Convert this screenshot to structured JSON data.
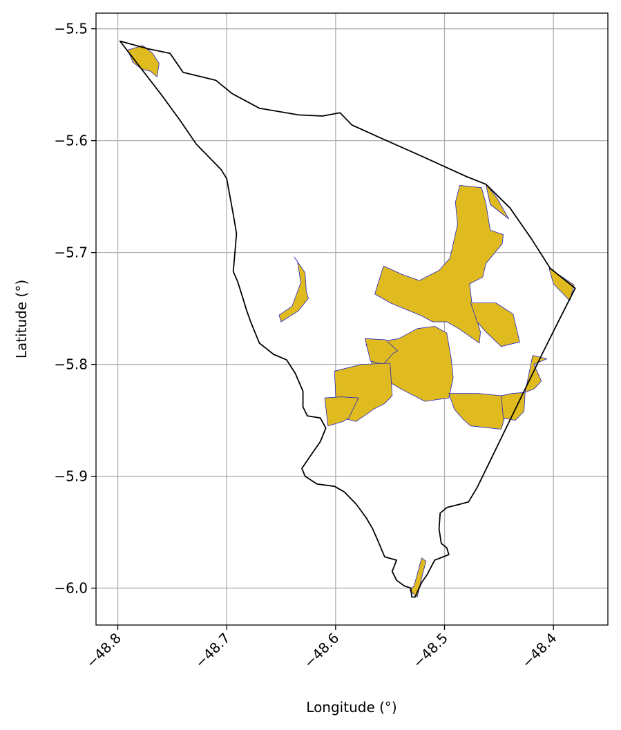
{
  "chart_data": {
    "type": "map",
    "xlabel": "Longitude (°)",
    "ylabel": "Latitude (°)",
    "xlim": [
      -48.82,
      -48.35
    ],
    "ylim": [
      -6.033,
      -5.486
    ],
    "grid": true,
    "xticks": [
      {
        "value": -48.8,
        "label": "−48.8"
      },
      {
        "value": -48.7,
        "label": "−48.7"
      },
      {
        "value": -48.6,
        "label": "−48.6"
      },
      {
        "value": -48.5,
        "label": "−48.5"
      },
      {
        "value": -48.4,
        "label": "−48.4"
      }
    ],
    "yticks": [
      {
        "value": -5.5,
        "label": "−5.5"
      },
      {
        "value": -5.6,
        "label": "−5.6"
      },
      {
        "value": -5.7,
        "label": "−5.7"
      },
      {
        "value": -5.8,
        "label": "−5.8"
      },
      {
        "value": -5.9,
        "label": "−5.9"
      },
      {
        "value": -6.0,
        "label": "−6.0"
      }
    ],
    "colors": {
      "boundary_edge": "#000000",
      "area_fill": "#dfbb1f",
      "area_edge": "#2222cc",
      "grid": "#b0b0b0"
    },
    "boundary": [
      [
        -48.798,
        -5.511
      ],
      [
        -48.772,
        -5.518
      ],
      [
        -48.752,
        -5.522
      ],
      [
        -48.74,
        -5.539
      ],
      [
        -48.71,
        -5.546
      ],
      [
        -48.695,
        -5.558
      ],
      [
        -48.67,
        -5.571
      ],
      [
        -48.634,
        -5.577
      ],
      [
        -48.612,
        -5.578
      ],
      [
        -48.596,
        -5.575
      ],
      [
        -48.585,
        -5.586
      ],
      [
        -48.56,
        -5.597
      ],
      [
        -48.523,
        -5.613
      ],
      [
        -48.48,
        -5.632
      ],
      [
        -48.462,
        -5.639
      ],
      [
        -48.44,
        -5.66
      ],
      [
        -48.42,
        -5.688
      ],
      [
        -48.403,
        -5.714
      ],
      [
        -48.38,
        -5.732
      ],
      [
        -48.392,
        -5.755
      ],
      [
        -48.41,
        -5.79
      ],
      [
        -48.425,
        -5.82
      ],
      [
        -48.44,
        -5.85
      ],
      [
        -48.455,
        -5.88
      ],
      [
        -48.47,
        -5.91
      ],
      [
        -48.478,
        -5.923
      ],
      [
        -48.486,
        -5.925
      ],
      [
        -48.498,
        -5.928
      ],
      [
        -48.504,
        -5.933
      ],
      [
        -48.505,
        -5.947
      ],
      [
        -48.503,
        -5.96
      ],
      [
        -48.498,
        -5.964
      ],
      [
        -48.496,
        -5.97
      ],
      [
        -48.509,
        -5.975
      ],
      [
        -48.516,
        -5.988
      ],
      [
        -48.521,
        -5.995
      ],
      [
        -48.527,
        -6.008
      ],
      [
        -48.53,
        -6.008
      ],
      [
        -48.531,
        -6.0
      ],
      [
        -48.537,
        -5.998
      ],
      [
        -48.544,
        -5.993
      ],
      [
        -48.548,
        -5.985
      ],
      [
        -48.544,
        -5.975
      ],
      [
        -48.555,
        -5.972
      ],
      [
        -48.561,
        -5.958
      ],
      [
        -48.566,
        -5.947
      ],
      [
        -48.572,
        -5.937
      ],
      [
        -48.581,
        -5.925
      ],
      [
        -48.592,
        -5.914
      ],
      [
        -48.601,
        -5.909
      ],
      [
        -48.617,
        -5.907
      ],
      [
        -48.628,
        -5.9
      ],
      [
        -48.631,
        -5.893
      ],
      [
        -48.624,
        -5.883
      ],
      [
        -48.614,
        -5.869
      ],
      [
        -48.609,
        -5.857
      ],
      [
        -48.614,
        -5.848
      ],
      [
        -48.626,
        -5.846
      ],
      [
        -48.63,
        -5.838
      ],
      [
        -48.63,
        -5.824
      ],
      [
        -48.637,
        -5.808
      ],
      [
        -48.645,
        -5.796
      ],
      [
        -48.657,
        -5.791
      ],
      [
        -48.67,
        -5.781
      ],
      [
        -48.678,
        -5.762
      ],
      [
        -48.682,
        -5.751
      ],
      [
        -48.687,
        -5.735
      ],
      [
        -48.69,
        -5.726
      ],
      [
        -48.694,
        -5.717
      ],
      [
        -48.692,
        -5.695
      ],
      [
        -48.691,
        -5.683
      ],
      [
        -48.694,
        -5.666
      ],
      [
        -48.7,
        -5.634
      ],
      [
        -48.705,
        -5.626
      ],
      [
        -48.728,
        -5.603
      ],
      [
        -48.742,
        -5.583
      ],
      [
        -48.76,
        -5.559
      ],
      [
        -48.798,
        -5.511
      ]
    ],
    "areas": [
      {
        "coords": [
          [
            -48.791,
            -5.519
          ],
          [
            -48.777,
            -5.515
          ],
          [
            -48.768,
            -5.522
          ],
          [
            -48.762,
            -5.531
          ],
          [
            -48.764,
            -5.543
          ],
          [
            -48.77,
            -5.538
          ],
          [
            -48.778,
            -5.536
          ],
          [
            -48.786,
            -5.53
          ]
        ]
      },
      {
        "coords": [
          [
            -48.638,
            -5.704
          ],
          [
            -48.628,
            -5.718
          ],
          [
            -48.627,
            -5.734
          ],
          [
            -48.625,
            -5.741
          ],
          [
            -48.634,
            -5.752
          ],
          [
            -48.65,
            -5.762
          ],
          [
            -48.652,
            -5.756
          ],
          [
            -48.64,
            -5.748
          ],
          [
            -48.632,
            -5.727
          ],
          [
            -48.635,
            -5.708
          ]
        ]
      },
      {
        "coords": [
          [
            -48.486,
            -5.64
          ],
          [
            -48.466,
            -5.642
          ],
          [
            -48.462,
            -5.656
          ],
          [
            -48.458,
            -5.68
          ],
          [
            -48.446,
            -5.684
          ],
          [
            -48.447,
            -5.692
          ],
          [
            -48.462,
            -5.71
          ],
          [
            -48.465,
            -5.722
          ],
          [
            -48.477,
            -5.728
          ],
          [
            -48.475,
            -5.744
          ],
          [
            -48.467,
            -5.771
          ],
          [
            -48.468,
            -5.781
          ],
          [
            -48.487,
            -5.768
          ],
          [
            -48.498,
            -5.762
          ],
          [
            -48.511,
            -5.762
          ],
          [
            -48.52,
            -5.757
          ],
          [
            -48.55,
            -5.745
          ],
          [
            -48.564,
            -5.737
          ],
          [
            -48.556,
            -5.712
          ],
          [
            -48.538,
            -5.72
          ],
          [
            -48.523,
            -5.725
          ],
          [
            -48.505,
            -5.716
          ],
          [
            -48.495,
            -5.705
          ],
          [
            -48.492,
            -5.692
          ],
          [
            -48.488,
            -5.675
          ],
          [
            -48.49,
            -5.655
          ]
        ]
      },
      {
        "coords": [
          [
            -48.476,
            -5.745
          ],
          [
            -48.453,
            -5.745
          ],
          [
            -48.437,
            -5.755
          ],
          [
            -48.431,
            -5.78
          ],
          [
            -48.448,
            -5.784
          ],
          [
            -48.462,
            -5.771
          ],
          [
            -48.47,
            -5.762
          ]
        ]
      },
      {
        "coords": [
          [
            -48.572,
            -5.782
          ],
          [
            -48.542,
            -5.777
          ],
          [
            -48.525,
            -5.768
          ],
          [
            -48.509,
            -5.766
          ],
          [
            -48.498,
            -5.772
          ],
          [
            -48.494,
            -5.794
          ],
          [
            -48.492,
            -5.812
          ],
          [
            -48.496,
            -5.83
          ],
          [
            -48.518,
            -5.833
          ],
          [
            -48.54,
            -5.822
          ],
          [
            -48.564,
            -5.808
          ]
        ]
      },
      {
        "coords": [
          [
            -48.573,
            -5.777
          ],
          [
            -48.554,
            -5.778
          ],
          [
            -48.543,
            -5.788
          ],
          [
            -48.547,
            -5.79
          ],
          [
            -48.556,
            -5.8
          ],
          [
            -48.568,
            -5.797
          ]
        ]
      },
      {
        "coords": [
          [
            -48.601,
            -5.806
          ],
          [
            -48.599,
            -5.847
          ],
          [
            -48.581,
            -5.851
          ],
          [
            -48.565,
            -5.84
          ],
          [
            -48.555,
            -5.835
          ],
          [
            -48.548,
            -5.828
          ],
          [
            -48.55,
            -5.799
          ],
          [
            -48.576,
            -5.8
          ]
        ]
      },
      {
        "coords": [
          [
            -48.61,
            -5.83
          ],
          [
            -48.607,
            -5.855
          ],
          [
            -48.593,
            -5.851
          ],
          [
            -48.588,
            -5.848
          ],
          [
            -48.579,
            -5.83
          ],
          [
            -48.595,
            -5.829
          ]
        ]
      },
      {
        "coords": [
          [
            -48.496,
            -5.826
          ],
          [
            -48.491,
            -5.84
          ],
          [
            -48.483,
            -5.849
          ],
          [
            -48.476,
            -5.855
          ],
          [
            -48.448,
            -5.858
          ],
          [
            -48.444,
            -5.845
          ],
          [
            -48.448,
            -5.828
          ],
          [
            -48.469,
            -5.826
          ]
        ]
      },
      {
        "coords": [
          [
            -48.448,
            -5.828
          ],
          [
            -48.438,
            -5.826
          ],
          [
            -48.426,
            -5.825
          ],
          [
            -48.427,
            -5.842
          ],
          [
            -48.435,
            -5.85
          ],
          [
            -48.446,
            -5.848
          ]
        ]
      },
      {
        "coords": [
          [
            -48.426,
            -5.825
          ],
          [
            -48.418,
            -5.822
          ],
          [
            -48.411,
            -5.815
          ],
          [
            -48.418,
            -5.8
          ],
          [
            -48.406,
            -5.795
          ],
          [
            -48.419,
            -5.792
          ]
        ]
      },
      {
        "coords": [
          [
            -48.462,
            -5.639
          ],
          [
            -48.458,
            -5.657
          ],
          [
            -48.441,
            -5.67
          ],
          [
            -48.452,
            -5.651
          ]
        ]
      },
      {
        "coords": [
          [
            -48.404,
            -5.714
          ],
          [
            -48.381,
            -5.729
          ],
          [
            -48.385,
            -5.743
          ],
          [
            -48.4,
            -5.728
          ]
        ]
      },
      {
        "coords": [
          [
            -48.521,
            -5.973
          ],
          [
            -48.528,
            -5.998
          ],
          [
            -48.532,
            -6.002
          ],
          [
            -48.525,
            -6.008
          ],
          [
            -48.52,
            -5.987
          ],
          [
            -48.517,
            -5.976
          ]
        ]
      }
    ]
  }
}
